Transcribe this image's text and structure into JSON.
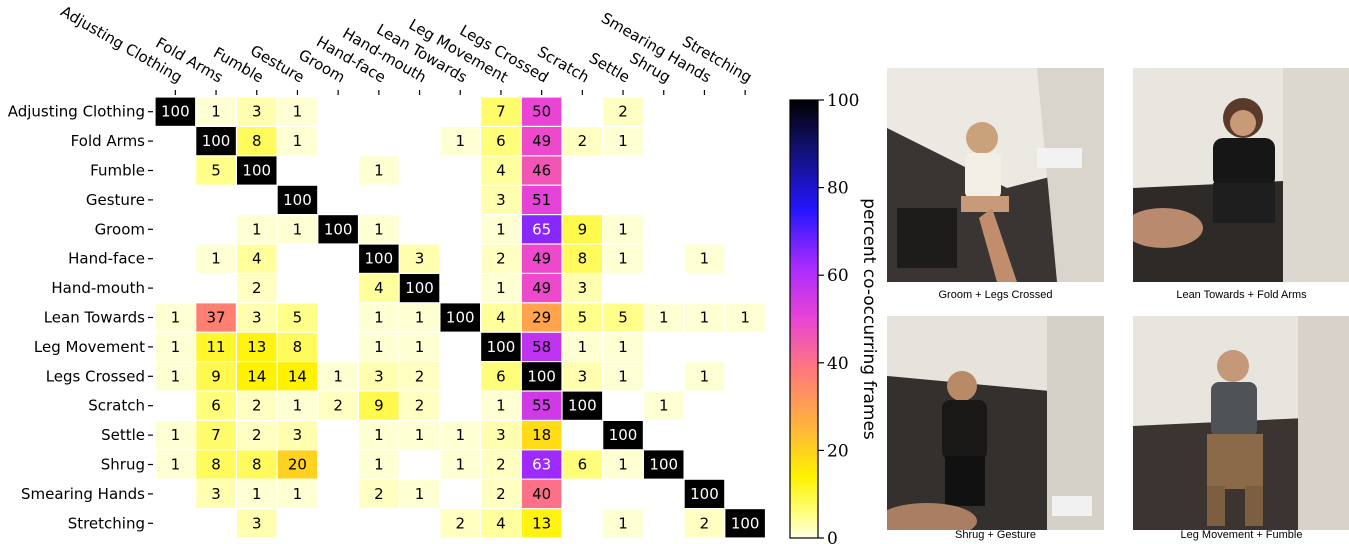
{
  "chart_data": {
    "type": "heatmap",
    "rows": [
      "Adjusting Clothing",
      "Fold Arms",
      "Fumble",
      "Gesture",
      "Groom",
      "Hand-face",
      "Hand-mouth",
      "Lean Towards",
      "Leg Movement",
      "Legs Crossed",
      "Scratch",
      "Settle",
      "Shrug",
      "Smearing Hands",
      "Stretching"
    ],
    "columns": [
      "Adjusting Clothing",
      "Fold Arms",
      "Fumble",
      "Gesture",
      "Groom",
      "Hand-face",
      "Hand-mouth",
      "Lean Towards",
      "Leg Movement",
      "Legs Crossed",
      "Scratch",
      "Settle",
      "Shrug",
      "Smearing Hands",
      "Stretching"
    ],
    "values": [
      [
        100,
        1,
        3,
        1,
        null,
        null,
        null,
        null,
        7,
        50,
        null,
        2,
        null,
        null,
        null
      ],
      [
        null,
        100,
        8,
        1,
        null,
        null,
        null,
        1,
        6,
        49,
        2,
        1,
        null,
        null,
        null
      ],
      [
        null,
        5,
        100,
        null,
        null,
        1,
        null,
        null,
        4,
        46,
        null,
        null,
        null,
        null,
        null
      ],
      [
        null,
        null,
        null,
        100,
        null,
        null,
        null,
        null,
        3,
        51,
        null,
        null,
        null,
        null,
        null
      ],
      [
        null,
        null,
        1,
        1,
        100,
        1,
        null,
        null,
        1,
        65,
        9,
        1,
        null,
        null,
        null
      ],
      [
        null,
        1,
        4,
        null,
        null,
        100,
        3,
        null,
        2,
        49,
        8,
        1,
        null,
        1,
        null
      ],
      [
        null,
        null,
        2,
        null,
        null,
        4,
        100,
        null,
        1,
        49,
        3,
        null,
        null,
        null,
        null
      ],
      [
        1,
        37,
        3,
        5,
        null,
        1,
        1,
        100,
        4,
        29,
        5,
        5,
        1,
        1,
        1
      ],
      [
        1,
        11,
        13,
        8,
        null,
        1,
        1,
        null,
        100,
        58,
        1,
        1,
        null,
        null,
        null
      ],
      [
        1,
        9,
        14,
        14,
        1,
        3,
        2,
        null,
        6,
        100,
        3,
        1,
        null,
        1,
        null
      ],
      [
        null,
        6,
        2,
        1,
        2,
        9,
        2,
        null,
        1,
        55,
        100,
        null,
        1,
        null,
        null
      ],
      [
        1,
        7,
        2,
        3,
        null,
        1,
        1,
        1,
        3,
        18,
        null,
        100,
        null,
        null,
        null
      ],
      [
        1,
        8,
        8,
        20,
        null,
        1,
        null,
        1,
        2,
        63,
        6,
        1,
        100,
        null,
        null
      ],
      [
        null,
        3,
        1,
        1,
        null,
        2,
        1,
        null,
        2,
        40,
        null,
        null,
        null,
        100,
        null
      ],
      [
        null,
        null,
        3,
        null,
        null,
        null,
        null,
        2,
        4,
        13,
        null,
        1,
        null,
        2,
        100
      ]
    ],
    "colorbar": {
      "label": "percent co-occurring frames",
      "min": 0,
      "max": 100,
      "ticks": [
        0,
        20,
        40,
        60,
        80,
        100
      ],
      "colormap": "gnuplot2_r"
    }
  },
  "photos": [
    {
      "caption": "Groom + Legs Crossed"
    },
    {
      "caption": "Lean Towards + Fold Arms"
    },
    {
      "caption": "Shrug + Gesture"
    },
    {
      "caption": "Leg Movement + Fumble"
    }
  ]
}
